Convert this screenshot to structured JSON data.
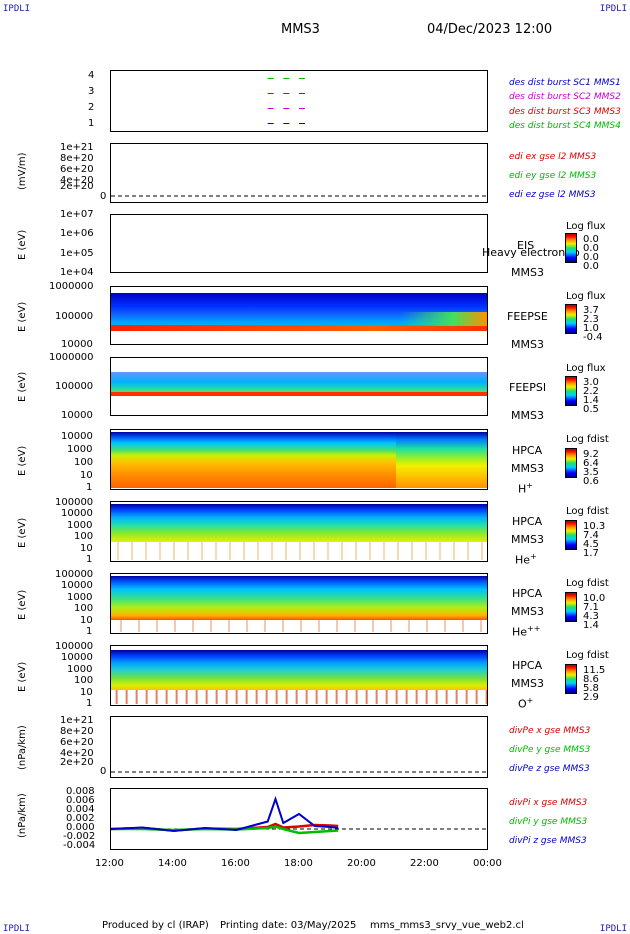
{
  "header": {
    "corner_tl": "IPDLI",
    "corner_tr": "IPDLI",
    "corner_bl": "IPDLI",
    "corner_br": "IPDLI",
    "title": "MMS3",
    "datetime": "04/Dec/2023 12:00"
  },
  "footer": {
    "produced": "Produced by cl (IRAP)",
    "printing": "Printing date: 03/May/2025",
    "script": "mms_mms3_srvy_vue_web2.cl"
  },
  "xaxis": {
    "ticks": [
      "12:00",
      "14:00",
      "16:00",
      "18:00",
      "20:00",
      "22:00",
      "00:00"
    ]
  },
  "panels": {
    "des": {
      "yticks": [
        "4",
        "3",
        "2",
        "1"
      ],
      "legend": [
        {
          "text": "des dist burst SC1 MMS1",
          "color": "#0000cc"
        },
        {
          "text": "des dist burst SC2 MMS2",
          "color": "#cc00cc"
        },
        {
          "text": "des dist burst SC3 MMS3",
          "color": "#dd0000"
        },
        {
          "text": "des dist burst SC4 MMS4",
          "color": "#00bb00"
        }
      ]
    },
    "edi": {
      "ylabel": "(mV/m)",
      "yticks": [
        "1e+21",
        "8e+20",
        "6e+20",
        "4e+20",
        "2e+20",
        "0"
      ],
      "legend": [
        {
          "text": "edi ex gse l2 MMS3",
          "color": "#dd0000"
        },
        {
          "text": "edi ey gse l2 MMS3",
          "color": "#00bb00"
        },
        {
          "text": "edi ez gse l2 MMS3",
          "color": "#0000cc"
        }
      ]
    },
    "eis": {
      "ylabel": "E (eV)",
      "yticks": [
        "1e+07",
        "1e+06",
        "1e+05",
        "1e+04"
      ],
      "side1": "EIS",
      "side2": "MMS3",
      "overlap": "Heavy electron to",
      "cb_title": "Log flux",
      "cb_vals": [
        "0.0",
        "0.0",
        "0.0",
        "0.0"
      ]
    },
    "feepse": {
      "ylabel": "E (eV)",
      "yticks": [
        "1000000",
        "100000",
        "10000"
      ],
      "side1": "FEEPSE",
      "side2": "MMS3",
      "cb_title": "Log flux",
      "cb_vals": [
        "3.7",
        "2.3",
        "1.0",
        "-0.4"
      ]
    },
    "feepsi": {
      "ylabel": "E (eV)",
      "yticks": [
        "1000000",
        "100000",
        "10000"
      ],
      "side1": "FEEPSI",
      "side2": "MMS3",
      "cb_title": "Log flux",
      "cb_vals": [
        "3.0",
        "2.2",
        "1.4",
        "0.5"
      ]
    },
    "hpca_h": {
      "ylabel": "E (eV)",
      "yticks": [
        "10000",
        "1000",
        "100",
        "10",
        "1"
      ],
      "side1": "HPCA",
      "side2": "MMS3",
      "species": "H",
      "charge": "+",
      "cb_title": "Log fdist",
      "cb_vals": [
        "9.2",
        "6.4",
        "3.5",
        "0.6"
      ]
    },
    "hpca_he": {
      "ylabel": "E (eV)",
      "yticks": [
        "100000",
        "10000",
        "1000",
        "100",
        "10",
        "1"
      ],
      "side1": "HPCA",
      "side2": "MMS3",
      "species": "He",
      "charge": "+",
      "cb_title": "Log fdist",
      "cb_vals": [
        "10.3",
        "7.4",
        "4.5",
        "1.7"
      ]
    },
    "hpca_hepp": {
      "ylabel": "E (eV)",
      "yticks": [
        "100000",
        "10000",
        "1000",
        "100",
        "10",
        "1"
      ],
      "side1": "HPCA",
      "side2": "MMS3",
      "species": "He",
      "charge": "++",
      "cb_title": "Log fdist",
      "cb_vals": [
        "10.0",
        "7.1",
        "4.3",
        "1.4"
      ]
    },
    "hpca_o": {
      "ylabel": "E (eV)",
      "yticks": [
        "100000",
        "10000",
        "1000",
        "100",
        "10",
        "1"
      ],
      "side1": "HPCA",
      "side2": "MMS3",
      "species": "O",
      "charge": "+",
      "cb_title": "Log fdist",
      "cb_vals": [
        "11.5",
        "8.6",
        "5.8",
        "2.9"
      ]
    },
    "divpe": {
      "ylabel": "(nPa/km)",
      "yticks": [
        "1e+21",
        "8e+20",
        "6e+20",
        "4e+20",
        "2e+20",
        "0"
      ],
      "legend": [
        {
          "text": "divPe x gse MMS3",
          "color": "#dd0000"
        },
        {
          "text": "divPe y gse MMS3",
          "color": "#00bb00"
        },
        {
          "text": "divPe z gse MMS3",
          "color": "#0000cc"
        }
      ]
    },
    "divpi": {
      "ylabel": "(nPa/km)",
      "yticks": [
        "0.008",
        "0.006",
        "0.004",
        "0.002",
        "0.000",
        "-0.002",
        "-0.004"
      ],
      "legend": [
        {
          "text": "divPi x gse MMS3",
          "color": "#dd0000"
        },
        {
          "text": "divPi y gse MMS3",
          "color": "#00bb00"
        },
        {
          "text": "divPi z gse MMS3",
          "color": "#0000cc"
        }
      ]
    }
  },
  "chart_data": [
    {
      "type": "scatter",
      "id": "des",
      "series": [
        {
          "name": "des dist burst SC1 MMS1",
          "x": [
            "17:00",
            "17:30",
            "18:00"
          ],
          "values": [
            1,
            1,
            1
          ]
        },
        {
          "name": "des dist burst SC2 MMS2",
          "x": [
            "17:00",
            "17:30",
            "18:00"
          ],
          "values": [
            2,
            2,
            2
          ]
        },
        {
          "name": "des dist burst SC3 MMS3",
          "x": [
            "17:00",
            "17:30",
            "18:00"
          ],
          "values": [
            3,
            3,
            3
          ]
        },
        {
          "name": "des dist burst SC4 MMS4",
          "x": [
            "17:00",
            "17:30",
            "18:00"
          ],
          "values": [
            4,
            4,
            4
          ]
        }
      ],
      "ylim": [
        0.5,
        4.5
      ]
    },
    {
      "type": "line",
      "id": "edi",
      "ylim": [
        0,
        1e+21
      ],
      "reference_line": 0,
      "series": []
    },
    {
      "type": "heatmap",
      "id": "eis",
      "ylim": [
        10000,
        10000000
      ],
      "log_y": true,
      "data": "empty"
    },
    {
      "type": "heatmap",
      "id": "feepse",
      "ylim": [
        10000,
        1000000
      ],
      "log_y": true,
      "colorbar": [
        -0.4,
        3.7
      ]
    },
    {
      "type": "heatmap",
      "id": "feepsi",
      "ylim": [
        10000,
        1000000
      ],
      "log_y": true,
      "colorbar": [
        0.5,
        3.0
      ]
    },
    {
      "type": "heatmap",
      "id": "hpca_h",
      "ylim": [
        1,
        30000
      ],
      "log_y": true,
      "colorbar": [
        0.6,
        9.2
      ]
    },
    {
      "type": "heatmap",
      "id": "hpca_he",
      "ylim": [
        1,
        100000
      ],
      "log_y": true,
      "colorbar": [
        1.7,
        10.3
      ]
    },
    {
      "type": "heatmap",
      "id": "hpca_hepp",
      "ylim": [
        1,
        100000
      ],
      "log_y": true,
      "colorbar": [
        1.4,
        10.0
      ]
    },
    {
      "type": "heatmap",
      "id": "hpca_o",
      "ylim": [
        1,
        100000
      ],
      "log_y": true,
      "colorbar": [
        2.9,
        11.5
      ]
    },
    {
      "type": "line",
      "id": "divpe",
      "ylim": [
        0,
        1e+21
      ],
      "reference_line": 0,
      "series": []
    },
    {
      "type": "line",
      "id": "divpi",
      "ylim": [
        -0.004,
        0.008
      ],
      "reference_line": 0.0,
      "x": [
        "12:00",
        "13:00",
        "14:00",
        "15:00",
        "16:00",
        "17:00",
        "17:15",
        "17:30",
        "18:00",
        "18:30",
        "19:00",
        "19:15"
      ],
      "series": [
        {
          "name": "divPi x gse MMS3",
          "values": [
            0.0,
            0.0002,
            -0.0003,
            0.0001,
            0.0,
            0.0004,
            0.001,
            0.0003,
            0.0005,
            0.0008,
            0.0007,
            0.0006
          ]
        },
        {
          "name": "divPi y gse MMS3",
          "values": [
            0.0,
            0.0,
            -0.0002,
            0.0,
            -0.0001,
            0.0002,
            0.0005,
            0.0,
            -0.0008,
            -0.0006,
            -0.0004,
            -0.0003
          ]
        },
        {
          "name": "divPi z gse MMS3",
          "values": [
            0.0,
            0.0003,
            -0.0004,
            0.0002,
            -0.0002,
            0.0015,
            0.006,
            0.0012,
            0.003,
            0.0006,
            0.0004,
            0.0002
          ]
        }
      ]
    }
  ]
}
